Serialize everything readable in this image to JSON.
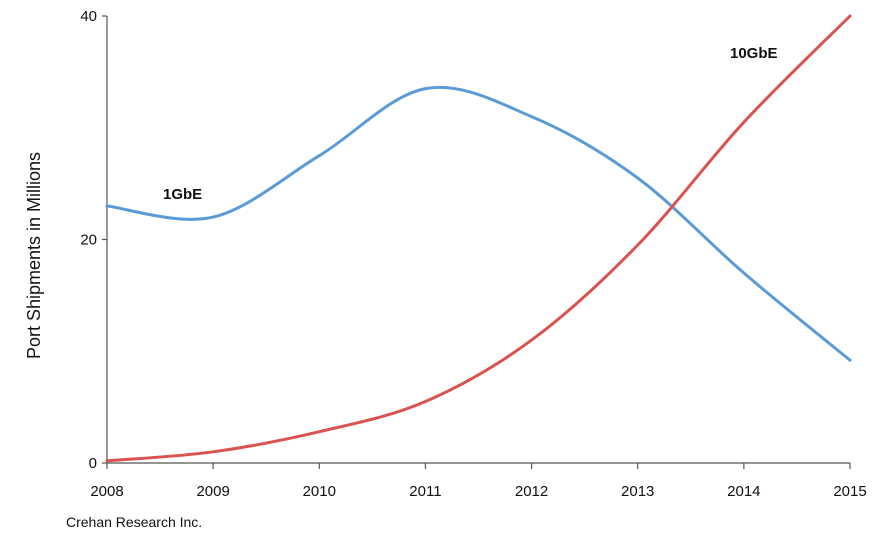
{
  "chart_data": {
    "type": "line",
    "title": "",
    "xlabel": "",
    "ylabel": "Port Shipments in Millions",
    "x": [
      "2008",
      "2009",
      "2010",
      "2011",
      "2012",
      "2013",
      "2014",
      "2015"
    ],
    "yticks": [
      "0",
      "20",
      "40"
    ],
    "ylim": [
      0,
      40
    ],
    "grid": false,
    "legend": "none",
    "series": [
      {
        "name": "1GbE",
        "color": "#5b9bd5",
        "values": [
          23,
          22,
          27.5,
          33.5,
          31,
          25.5,
          17,
          9.2
        ]
      },
      {
        "name": "10GbE",
        "color": "#d9534f",
        "values": [
          0.2,
          1,
          2.8,
          5.5,
          11,
          19.5,
          30.5,
          40
        ]
      }
    ]
  },
  "source": "Crehan Research Inc."
}
